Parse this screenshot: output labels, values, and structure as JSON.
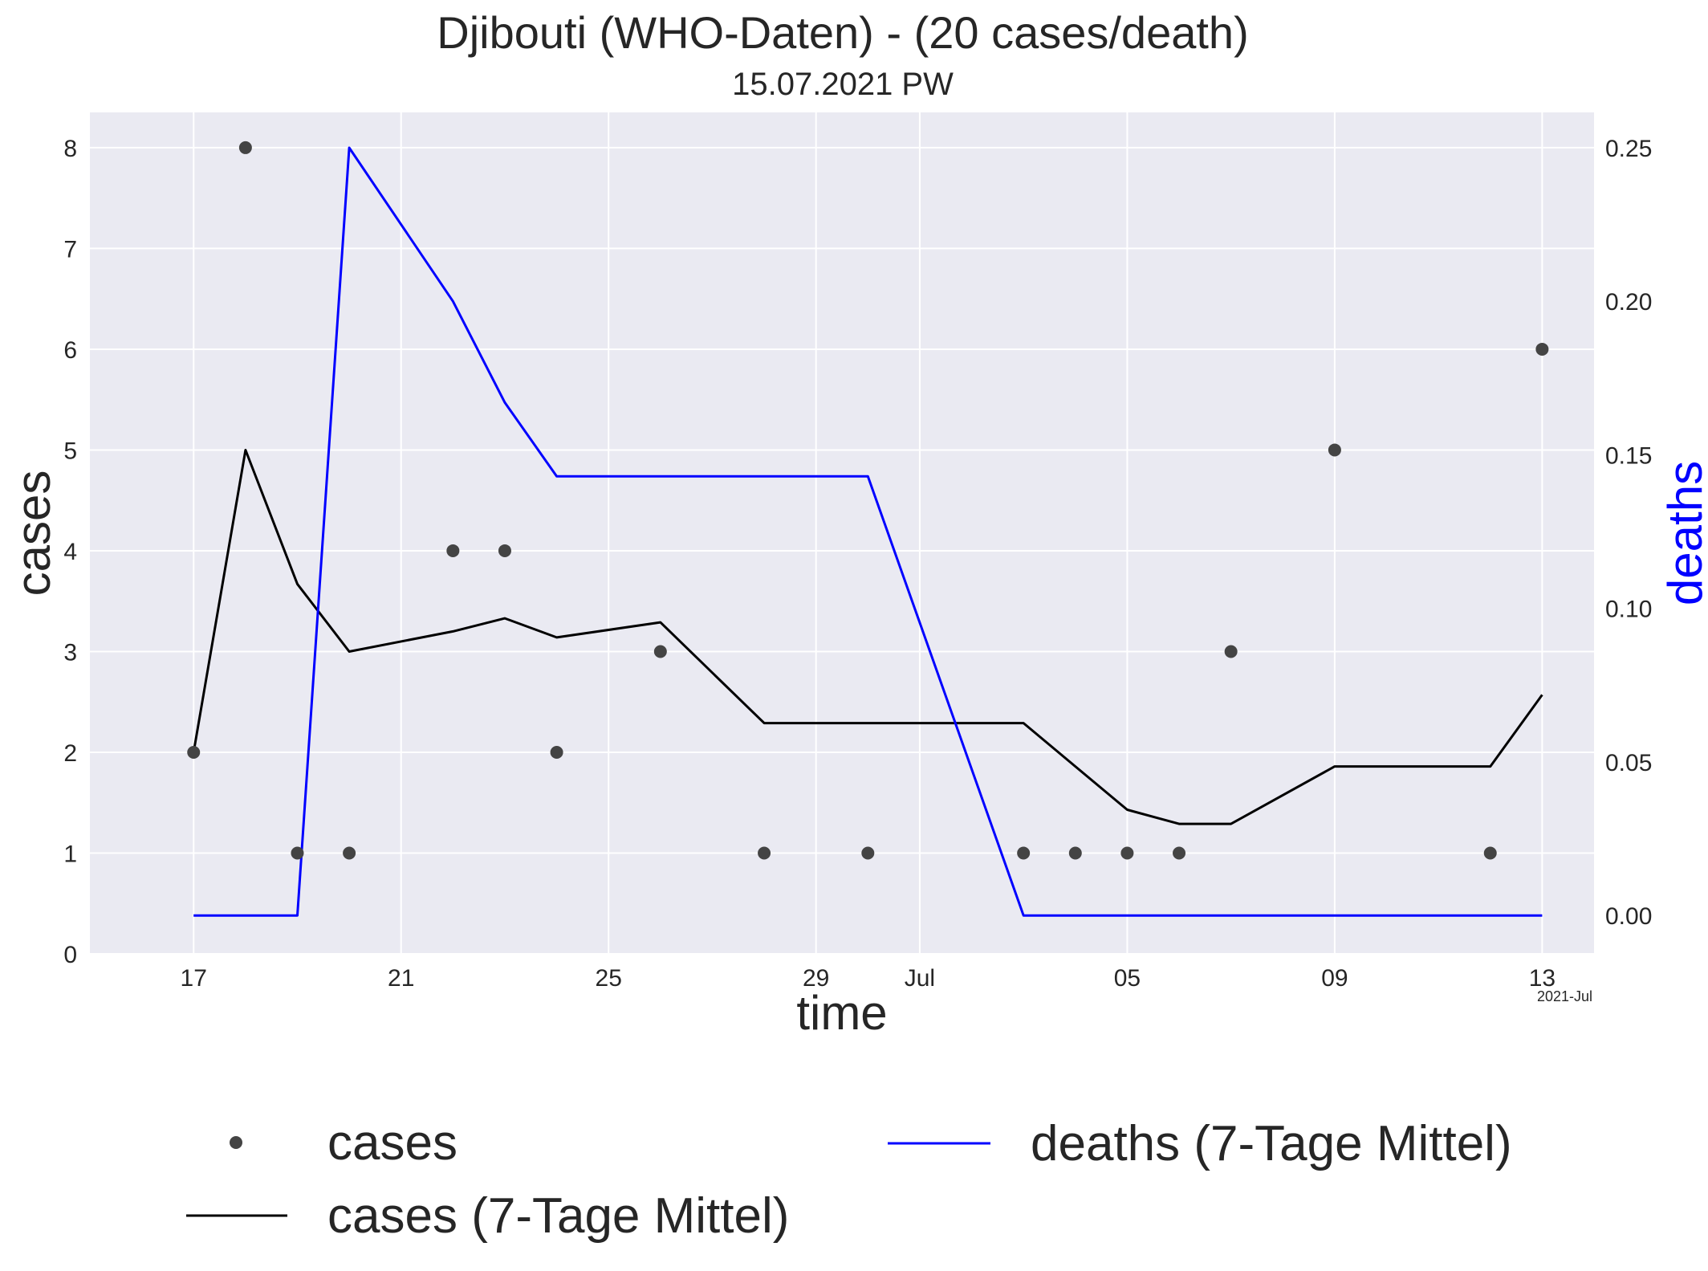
{
  "chart_data": {
    "type": "line",
    "title": "Djibouti (WHO-Daten) - (20 cases/death)",
    "subtitle": "15.07.2021 PW",
    "xlabel": "time",
    "ylabel_left": "cases",
    "ylabel_right": "deaths",
    "x_range": [
      "2021-06-15",
      "2021-07-14"
    ],
    "x_ticks": [
      {
        "date": "2021-06-17",
        "label": "17"
      },
      {
        "date": "2021-06-21",
        "label": "21"
      },
      {
        "date": "2021-06-25",
        "label": "25"
      },
      {
        "date": "2021-06-29",
        "label": "29"
      },
      {
        "date": "2021-07-01",
        "label": "Jul"
      },
      {
        "date": "2021-07-05",
        "label": "05"
      },
      {
        "date": "2021-07-09",
        "label": "09"
      },
      {
        "date": "2021-07-13",
        "label": "13"
      }
    ],
    "x_offset_label": "2021-Jul",
    "y_left": {
      "lim": [
        0,
        8.35
      ],
      "ticks": [
        0,
        1,
        2,
        3,
        4,
        5,
        6,
        7,
        8
      ]
    },
    "y_right": {
      "lim": [
        -0.0125,
        0.2615
      ],
      "ticks": [
        "0.00",
        "0.05",
        "0.10",
        "0.15",
        "0.20",
        "0.25"
      ]
    },
    "grid": true,
    "legend_position": "bottom",
    "colors": {
      "background": "#eaeaf2",
      "cases": "#444444",
      "cases_avg": "#000000",
      "deaths_avg": "#0000ff",
      "deaths_label": "#0000ff"
    },
    "series": [
      {
        "name": "cases",
        "kind": "points",
        "axis": "left",
        "points": [
          {
            "x": "2021-06-17",
            "y": 2
          },
          {
            "x": "2021-06-18",
            "y": 8
          },
          {
            "x": "2021-06-19",
            "y": 1
          },
          {
            "x": "2021-06-20",
            "y": 1
          },
          {
            "x": "2021-06-22",
            "y": 4
          },
          {
            "x": "2021-06-23",
            "y": 4
          },
          {
            "x": "2021-06-24",
            "y": 2
          },
          {
            "x": "2021-06-26",
            "y": 3
          },
          {
            "x": "2021-06-28",
            "y": 1
          },
          {
            "x": "2021-06-30",
            "y": 1
          },
          {
            "x": "2021-07-03",
            "y": 1
          },
          {
            "x": "2021-07-04",
            "y": 1
          },
          {
            "x": "2021-07-05",
            "y": 1
          },
          {
            "x": "2021-07-06",
            "y": 1
          },
          {
            "x": "2021-07-07",
            "y": 3
          },
          {
            "x": "2021-07-09",
            "y": 5
          },
          {
            "x": "2021-07-12",
            "y": 1
          },
          {
            "x": "2021-07-13",
            "y": 6
          }
        ]
      },
      {
        "name": "cases (7-Tage Mittel)",
        "kind": "line",
        "axis": "left",
        "points": [
          {
            "x": "2021-06-17",
            "y": 2.0
          },
          {
            "x": "2021-06-18",
            "y": 5.0
          },
          {
            "x": "2021-06-19",
            "y": 3.67
          },
          {
            "x": "2021-06-20",
            "y": 3.0
          },
          {
            "x": "2021-06-22",
            "y": 3.2
          },
          {
            "x": "2021-06-23",
            "y": 3.33
          },
          {
            "x": "2021-06-24",
            "y": 3.14
          },
          {
            "x": "2021-06-26",
            "y": 3.29
          },
          {
            "x": "2021-06-28",
            "y": 2.29
          },
          {
            "x": "2021-06-30",
            "y": 2.29
          },
          {
            "x": "2021-07-03",
            "y": 2.29
          },
          {
            "x": "2021-07-04",
            "y": 1.86
          },
          {
            "x": "2021-07-05",
            "y": 1.43
          },
          {
            "x": "2021-07-06",
            "y": 1.29
          },
          {
            "x": "2021-07-07",
            "y": 1.29
          },
          {
            "x": "2021-07-09",
            "y": 1.86
          },
          {
            "x": "2021-07-12",
            "y": 1.86
          },
          {
            "x": "2021-07-13",
            "y": 2.57
          }
        ]
      },
      {
        "name": "deaths (7-Tage Mittel)",
        "kind": "line",
        "axis": "right",
        "points": [
          {
            "x": "2021-06-17",
            "y": 0.0
          },
          {
            "x": "2021-06-18",
            "y": 0.0
          },
          {
            "x": "2021-06-19",
            "y": 0.0
          },
          {
            "x": "2021-06-20",
            "y": 0.25
          },
          {
            "x": "2021-06-22",
            "y": 0.2
          },
          {
            "x": "2021-06-23",
            "y": 0.167
          },
          {
            "x": "2021-06-24",
            "y": 0.143
          },
          {
            "x": "2021-06-26",
            "y": 0.143
          },
          {
            "x": "2021-06-28",
            "y": 0.143
          },
          {
            "x": "2021-06-30",
            "y": 0.143
          },
          {
            "x": "2021-07-03",
            "y": 0.0
          },
          {
            "x": "2021-07-04",
            "y": 0.0
          },
          {
            "x": "2021-07-05",
            "y": 0.0
          },
          {
            "x": "2021-07-06",
            "y": 0.0
          },
          {
            "x": "2021-07-07",
            "y": 0.0
          },
          {
            "x": "2021-07-09",
            "y": 0.0
          },
          {
            "x": "2021-07-12",
            "y": 0.0
          },
          {
            "x": "2021-07-13",
            "y": 0.0
          }
        ]
      }
    ]
  }
}
